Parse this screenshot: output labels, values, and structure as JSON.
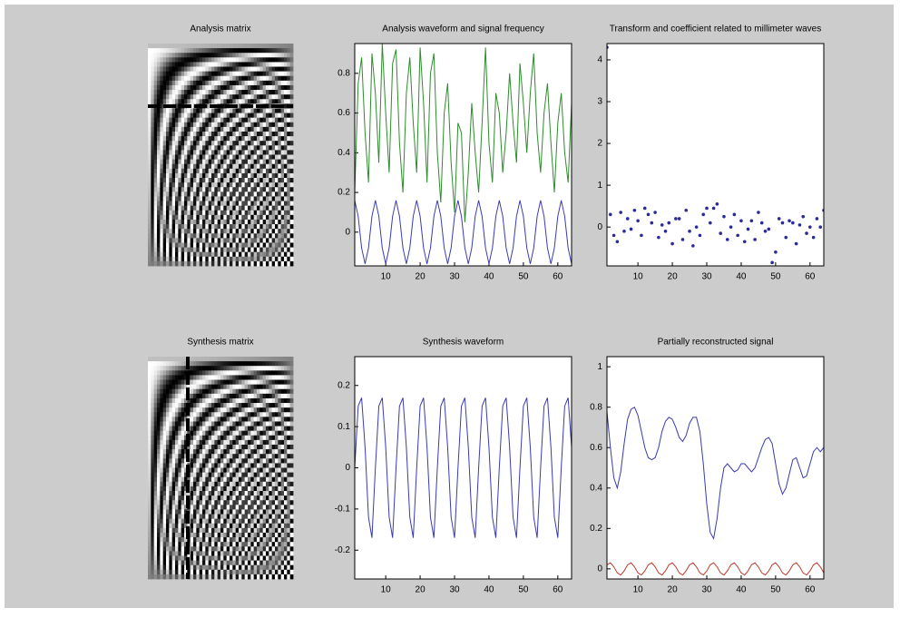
{
  "chart_data": [
    {
      "type": "image",
      "title": "Analysis matrix"
    },
    {
      "type": "line",
      "title": "Analysis waveform and signal frequency",
      "x": [
        1,
        2,
        3,
        4,
        5,
        6,
        7,
        8,
        9,
        10,
        11,
        12,
        13,
        14,
        15,
        16,
        17,
        18,
        19,
        20,
        21,
        22,
        23,
        24,
        25,
        26,
        27,
        28,
        29,
        30,
        31,
        32,
        33,
        34,
        35,
        36,
        37,
        38,
        39,
        40,
        41,
        42,
        43,
        44,
        45,
        46,
        47,
        48,
        49,
        50,
        51,
        52,
        53,
        54,
        55,
        56,
        57,
        58,
        59,
        60,
        61,
        62,
        63,
        64
      ],
      "series": [
        {
          "color": "#2e8b2e",
          "values": [
            0.2,
            0.75,
            0.88,
            0.5,
            0.25,
            0.9,
            0.7,
            0.35,
            0.95,
            0.6,
            0.3,
            0.85,
            0.92,
            0.45,
            0.2,
            0.7,
            0.88,
            0.55,
            0.3,
            0.93,
            0.65,
            0.25,
            0.8,
            0.9,
            0.4,
            0.15,
            0.6,
            0.75,
            0.35,
            0.1,
            0.55,
            0.5,
            0.05,
            0.3,
            0.65,
            0.4,
            0.2,
            0.55,
            0.93,
            0.45,
            0.25,
            0.7,
            0.6,
            0.3,
            0.5,
            0.8,
            0.55,
            0.35,
            0.85,
            0.65,
            0.4,
            0.7,
            0.9,
            0.5,
            0.3,
            0.6,
            0.75,
            0.45,
            0.2,
            0.55,
            0.7,
            0.4,
            0.25,
            0.65
          ]
        },
        {
          "color": "#3a3ab0",
          "values": [
            0.16,
            0.08,
            -0.08,
            -0.16,
            -0.08,
            0.08,
            0.16,
            0.08,
            -0.08,
            -0.16,
            -0.08,
            0.08,
            0.16,
            0.08,
            -0.08,
            -0.16,
            -0.08,
            0.08,
            0.16,
            0.08,
            -0.08,
            -0.16,
            -0.08,
            0.08,
            0.16,
            0.08,
            -0.08,
            -0.16,
            -0.08,
            0.08,
            0.16,
            0.08,
            -0.08,
            -0.16,
            -0.08,
            0.08,
            0.16,
            0.08,
            -0.08,
            -0.16,
            -0.08,
            0.08,
            0.16,
            0.08,
            -0.08,
            -0.16,
            -0.08,
            0.08,
            0.16,
            0.08,
            -0.08,
            -0.16,
            -0.08,
            0.08,
            0.16,
            0.08,
            -0.08,
            -0.16,
            -0.08,
            0.08,
            0.16,
            0.08,
            -0.08,
            -0.16
          ]
        }
      ],
      "xlim": [
        1,
        64
      ],
      "xticks": [
        10,
        20,
        30,
        40,
        50,
        60
      ],
      "ylim": [
        -0.17,
        0.95
      ],
      "yticks": [
        0,
        0.2,
        0.4,
        0.6,
        0.8
      ]
    },
    {
      "type": "scatter",
      "title": "Transform and coefficient related to millimeter waves",
      "x": [
        1,
        2,
        3,
        4,
        5,
        6,
        7,
        8,
        9,
        10,
        11,
        12,
        13,
        14,
        15,
        16,
        17,
        18,
        19,
        20,
        21,
        22,
        23,
        24,
        25,
        26,
        27,
        28,
        29,
        30,
        31,
        32,
        33,
        34,
        35,
        36,
        37,
        38,
        39,
        40,
        41,
        42,
        43,
        44,
        45,
        46,
        47,
        48,
        49,
        50,
        51,
        52,
        53,
        54,
        55,
        56,
        57,
        58,
        59,
        60,
        61,
        62,
        63,
        64
      ],
      "values": [
        4.3,
        0.3,
        -0.2,
        -0.35,
        0.35,
        -0.1,
        0.2,
        -0.05,
        0.4,
        0.15,
        -0.2,
        0.45,
        0.3,
        0.1,
        0.35,
        -0.25,
        0.05,
        -0.1,
        0.1,
        -0.4,
        0.2,
        0.2,
        -0.3,
        0.4,
        -0.1,
        -0.45,
        0.0,
        -0.2,
        0.3,
        0.45,
        0.1,
        0.45,
        0.55,
        -0.15,
        0.25,
        -0.3,
        0.0,
        0.3,
        -0.2,
        0.15,
        -0.35,
        -0.05,
        0.15,
        -0.3,
        0.35,
        0.1,
        -0.1,
        -0.05,
        -0.85,
        -0.6,
        0.2,
        0.1,
        -0.25,
        0.15,
        0.1,
        -0.4,
        0.05,
        0.25,
        -0.15,
        0.0,
        -0.25,
        0.2,
        0.0,
        0.4
      ],
      "color": "#2a2a9a",
      "xlim": [
        1,
        64
      ],
      "xticks": [
        10,
        20,
        30,
        40,
        50,
        60
      ],
      "ylim": [
        -0.93,
        4.39
      ],
      "yticks": [
        0,
        1,
        2,
        3,
        4
      ]
    },
    {
      "type": "image",
      "title": "Synthesis matrix"
    },
    {
      "type": "line",
      "title": "Synthesis waveform",
      "x": [
        1,
        2,
        3,
        4,
        5,
        6,
        7,
        8,
        9,
        10,
        11,
        12,
        13,
        14,
        15,
        16,
        17,
        18,
        19,
        20,
        21,
        22,
        23,
        24,
        25,
        26,
        27,
        28,
        29,
        30,
        31,
        32,
        33,
        34,
        35,
        36,
        37,
        38,
        39,
        40,
        41,
        42,
        43,
        44,
        45,
        46,
        47,
        48,
        49,
        50,
        51,
        52,
        53,
        54,
        55,
        56,
        57,
        58,
        59,
        60,
        61,
        62,
        63,
        64
      ],
      "series": [
        {
          "color": "#3a3ab0",
          "values": [
            0.0,
            0.15,
            0.17,
            0.05,
            -0.12,
            -0.17,
            0.0,
            0.15,
            0.17,
            0.05,
            -0.12,
            -0.17,
            0.0,
            0.15,
            0.17,
            0.05,
            -0.12,
            -0.17,
            0.0,
            0.15,
            0.17,
            0.05,
            -0.12,
            -0.17,
            0.0,
            0.15,
            0.17,
            0.05,
            -0.12,
            -0.17,
            0.0,
            0.15,
            0.17,
            0.05,
            -0.12,
            -0.17,
            0.0,
            0.15,
            0.17,
            0.05,
            -0.12,
            -0.17,
            0.0,
            0.15,
            0.17,
            0.05,
            -0.12,
            -0.17,
            0.0,
            0.15,
            0.17,
            0.05,
            -0.12,
            -0.17,
            0.0,
            0.15,
            0.17,
            0.05,
            -0.12,
            -0.17,
            0.0,
            0.15,
            0.17,
            0.05
          ]
        }
      ],
      "xlim": [
        1,
        64
      ],
      "xticks": [
        10,
        20,
        30,
        40,
        50,
        60
      ],
      "ylim": [
        -0.27,
        0.27
      ],
      "yticks": [
        -0.2,
        -0.1,
        0,
        0.1,
        0.2
      ]
    },
    {
      "type": "line",
      "title": "Partially reconstructed signal",
      "x": [
        1,
        2,
        3,
        4,
        5,
        6,
        7,
        8,
        9,
        10,
        11,
        12,
        13,
        14,
        15,
        16,
        17,
        18,
        19,
        20,
        21,
        22,
        23,
        24,
        25,
        26,
        27,
        28,
        29,
        30,
        31,
        32,
        33,
        34,
        35,
        36,
        37,
        38,
        39,
        40,
        41,
        42,
        43,
        44,
        45,
        46,
        47,
        48,
        49,
        50,
        51,
        52,
        53,
        54,
        55,
        56,
        57,
        58,
        59,
        60,
        61,
        62,
        63,
        64
      ],
      "series": [
        {
          "color": "#3a3ab0",
          "values": [
            0.78,
            0.6,
            0.45,
            0.4,
            0.48,
            0.62,
            0.74,
            0.79,
            0.8,
            0.76,
            0.68,
            0.6,
            0.55,
            0.54,
            0.55,
            0.6,
            0.68,
            0.73,
            0.75,
            0.74,
            0.7,
            0.65,
            0.63,
            0.66,
            0.72,
            0.75,
            0.75,
            0.68,
            0.52,
            0.32,
            0.18,
            0.15,
            0.25,
            0.4,
            0.5,
            0.52,
            0.5,
            0.48,
            0.49,
            0.52,
            0.52,
            0.5,
            0.48,
            0.5,
            0.55,
            0.6,
            0.64,
            0.65,
            0.62,
            0.52,
            0.42,
            0.37,
            0.4,
            0.47,
            0.54,
            0.55,
            0.5,
            0.45,
            0.46,
            0.52,
            0.58,
            0.6,
            0.58,
            0.6
          ]
        },
        {
          "color": "#c0392b",
          "values": [
            0.02,
            0.03,
            0.01,
            -0.02,
            -0.03,
            -0.01,
            0.02,
            0.03,
            0.01,
            -0.02,
            -0.03,
            -0.01,
            0.02,
            0.03,
            0.01,
            -0.02,
            -0.03,
            -0.01,
            0.02,
            0.03,
            0.01,
            -0.02,
            -0.03,
            -0.01,
            0.02,
            0.03,
            0.01,
            -0.02,
            -0.03,
            -0.01,
            0.02,
            0.03,
            0.01,
            -0.02,
            -0.03,
            -0.01,
            0.02,
            0.03,
            0.01,
            -0.02,
            -0.03,
            -0.01,
            0.02,
            0.03,
            0.01,
            -0.02,
            -0.03,
            -0.01,
            0.02,
            0.03,
            0.01,
            -0.02,
            -0.03,
            -0.01,
            0.02,
            0.03,
            0.01,
            -0.02,
            -0.03,
            -0.01,
            0.02,
            0.03,
            0.01,
            -0.02
          ]
        }
      ],
      "xlim": [
        1,
        64
      ],
      "xticks": [
        10,
        20,
        30,
        40,
        50,
        60
      ],
      "ylim": [
        -0.05,
        1.05
      ],
      "yticks": [
        0,
        0.2,
        0.4,
        0.6,
        0.8,
        1
      ]
    }
  ]
}
